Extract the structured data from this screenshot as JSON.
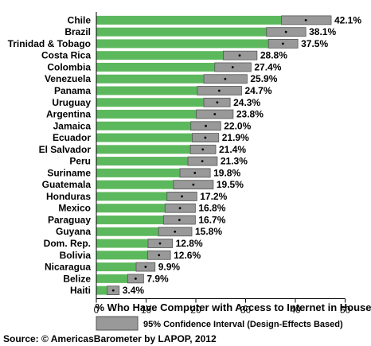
{
  "chart_data": {
    "type": "bar",
    "orientation": "horizontal",
    "categories": [
      "Chile",
      "Brazil",
      "Trinidad & Tobago",
      "Costa Rica",
      "Colombia",
      "Venezuela",
      "Panama",
      "Uruguay",
      "Argentina",
      "Jamaica",
      "Ecuador",
      "El Salvador",
      "Peru",
      "Suriname",
      "Guatemala",
      "Honduras",
      "Mexico",
      "Paraguay",
      "Guyana",
      "Dom. Rep.",
      "Bolivia",
      "Nicaragua",
      "Belize",
      "Haiti"
    ],
    "values": [
      42.1,
      38.1,
      37.5,
      28.8,
      27.4,
      25.9,
      24.7,
      24.3,
      23.8,
      22.0,
      21.9,
      21.4,
      21.3,
      19.8,
      19.5,
      17.2,
      16.8,
      16.7,
      15.8,
      12.8,
      12.6,
      9.9,
      7.9,
      3.4
    ],
    "value_labels": [
      "42.1%",
      "38.1%",
      "37.5%",
      "28.8%",
      "27.4%",
      "25.9%",
      "24.7%",
      "24.3%",
      "23.8%",
      "22.0%",
      "21.9%",
      "21.4%",
      "21.3%",
      "19.8%",
      "19.5%",
      "17.2%",
      "16.8%",
      "16.7%",
      "15.8%",
      "12.8%",
      "12.6%",
      "9.9%",
      "7.9%",
      "3.4%"
    ],
    "ci_lower": [
      37.2,
      34.2,
      34.6,
      25.5,
      23.8,
      21.6,
      20.3,
      21.6,
      20.1,
      19.0,
      19.3,
      18.9,
      18.4,
      16.8,
      15.5,
      14.2,
      13.8,
      13.5,
      12.5,
      10.4,
      10.3,
      8.0,
      6.3,
      2.2
    ],
    "ci_upper": [
      47.2,
      42.1,
      40.5,
      32.3,
      31.1,
      30.3,
      29.2,
      26.9,
      27.5,
      25.0,
      24.6,
      24.0,
      24.3,
      22.9,
      23.5,
      20.2,
      19.9,
      19.9,
      19.2,
      15.3,
      14.9,
      11.8,
      9.5,
      4.6
    ],
    "xlabel": "% Who Have Computer with Access to Internet in House",
    "xlim": [
      0,
      50
    ],
    "xticks": [
      "0",
      "10",
      "20",
      "30",
      "40",
      "50"
    ],
    "legend": {
      "label": "95% Confidence Interval (Design-Effects Based)",
      "placement": "bottom"
    },
    "source": "Source: © AmericasBarometer by LAPOP, 2012",
    "grid": false,
    "colors": {
      "bar": "#5cb85c",
      "ci": "#999999",
      "outline": "#555555"
    }
  }
}
